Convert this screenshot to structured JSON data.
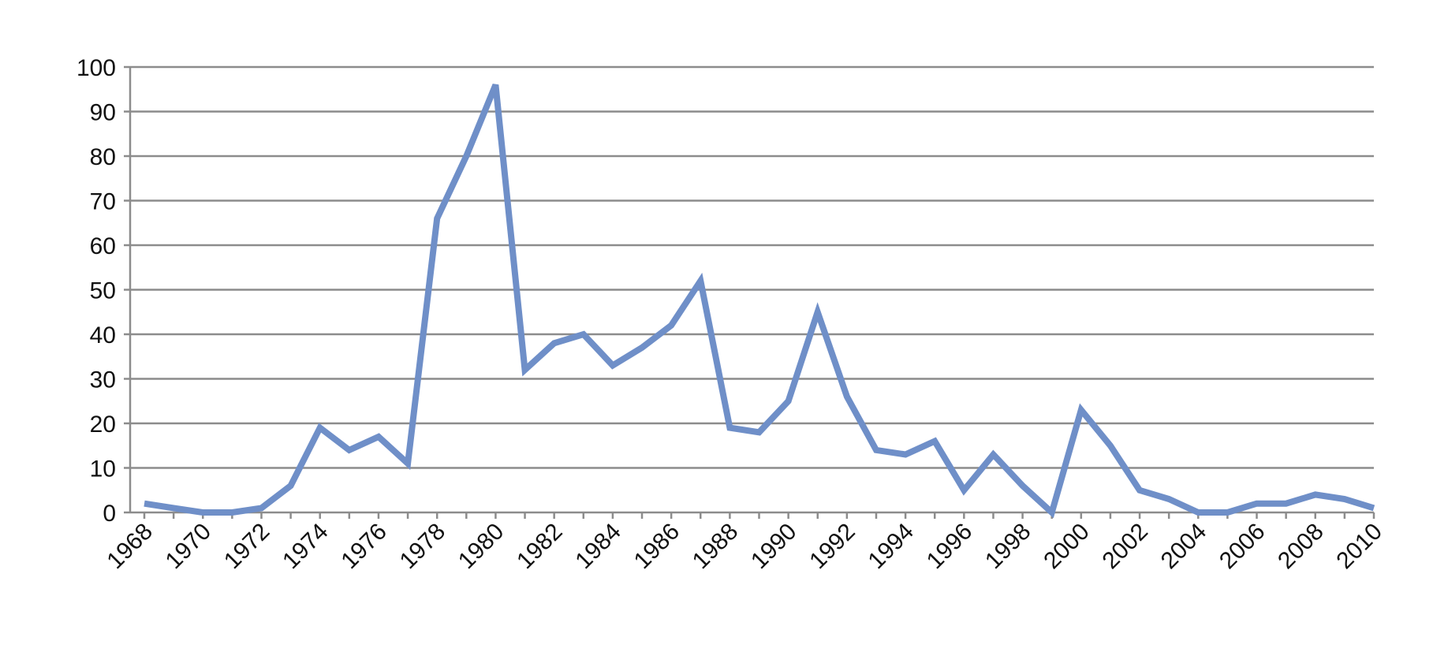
{
  "chart_data": {
    "type": "line",
    "title": "",
    "xlabel": "",
    "ylabel": "",
    "ylim": [
      0,
      100
    ],
    "y_ticks": [
      0,
      10,
      20,
      30,
      40,
      50,
      60,
      70,
      80,
      90,
      100
    ],
    "x_tick_labels": [
      "1968",
      "1970",
      "1972",
      "1974",
      "1976",
      "1978",
      "1980",
      "1982",
      "1984",
      "1986",
      "1988",
      "1990",
      "1992",
      "1994",
      "1996",
      "1998",
      "2000",
      "2002",
      "2004",
      "2006",
      "2008",
      "2010"
    ],
    "grid": true,
    "legend": "none",
    "line_color": "#6f8fc8",
    "x": [
      1968,
      1969,
      1970,
      1971,
      1972,
      1973,
      1974,
      1975,
      1976,
      1977,
      1978,
      1979,
      1980,
      1981,
      1982,
      1983,
      1984,
      1985,
      1986,
      1987,
      1988,
      1989,
      1990,
      1991,
      1992,
      1993,
      1994,
      1995,
      1996,
      1997,
      1998,
      1999,
      2000,
      2001,
      2002,
      2003,
      2004,
      2005,
      2006,
      2007,
      2008,
      2009,
      2010
    ],
    "series": [
      {
        "values": [
          2,
          1,
          0,
          0,
          1,
          6,
          19,
          14,
          17,
          11,
          66,
          80,
          96,
          32,
          38,
          40,
          33,
          37,
          42,
          52,
          19,
          18,
          25,
          45,
          26,
          14,
          13,
          16,
          5,
          13,
          6,
          0,
          23,
          15,
          5,
          3,
          0,
          0,
          2,
          2,
          4,
          3,
          1
        ]
      }
    ]
  }
}
